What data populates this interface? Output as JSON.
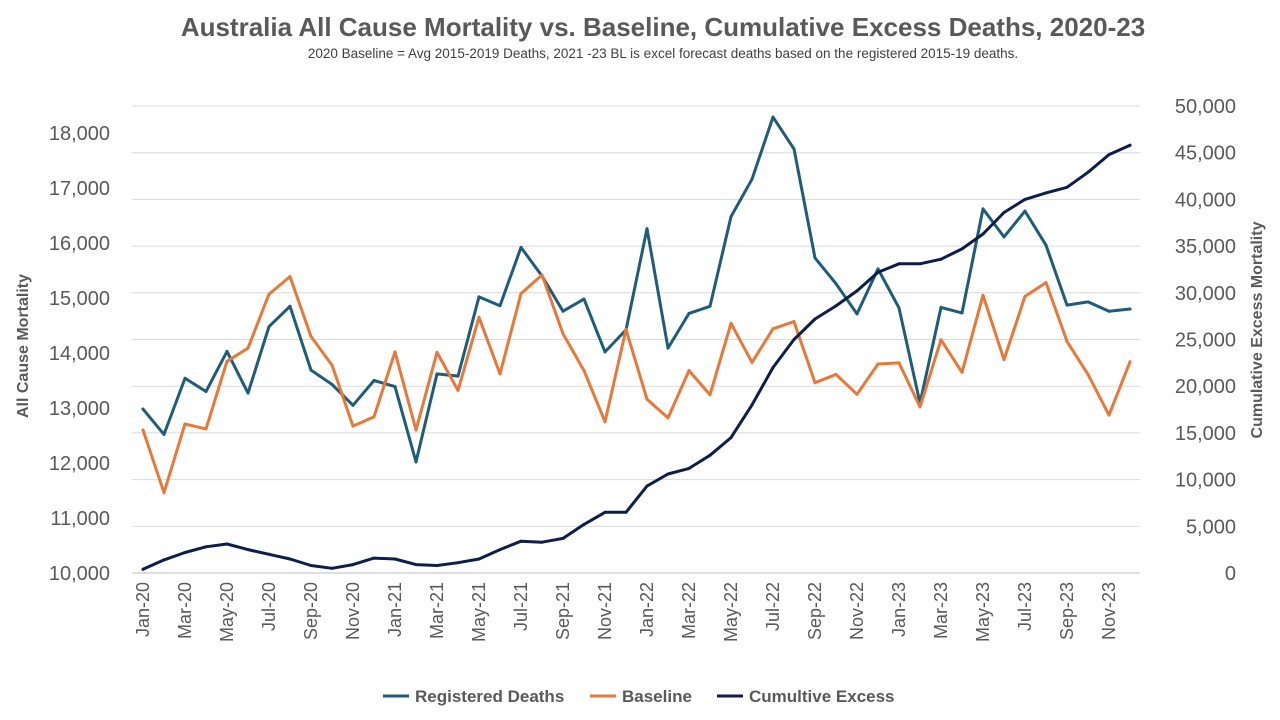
{
  "chart_data": {
    "type": "line",
    "title": "Australia All Cause Mortality vs. Baseline, Cumulative Excess Deaths, 2020-23",
    "subtitle": "2020 Baseline = Avg 2015-2019 Deaths, 2021 -23 BL is excel forecast deaths based on the registered 2015-19 deaths.",
    "ylabel_left": "All Cause Mortality",
    "ylabel_right": "Cumulative Excess Mortality",
    "xlabel": "",
    "ylim_left": [
      10000,
      18500
    ],
    "ylim_right": [
      0,
      50000
    ],
    "yticks_left": [
      "10,000",
      "11,000",
      "12,000",
      "13,000",
      "14,000",
      "15,000",
      "16,000",
      "17,000",
      "18,000"
    ],
    "yticks_right": [
      "0",
      "5,000",
      "10,000",
      "15,000",
      "20,000",
      "25,000",
      "30,000",
      "35,000",
      "40,000",
      "45,000",
      "50,000"
    ],
    "grid": true,
    "legend_position": "bottom",
    "x": [
      "Jan-20",
      "Feb-20",
      "Mar-20",
      "Apr-20",
      "May-20",
      "Jun-20",
      "Jul-20",
      "Aug-20",
      "Sep-20",
      "Oct-20",
      "Nov-20",
      "Dec-20",
      "Jan-21",
      "Feb-21",
      "Mar-21",
      "Apr-21",
      "May-21",
      "Jun-21",
      "Jul-21",
      "Aug-21",
      "Sep-21",
      "Oct-21",
      "Nov-21",
      "Dec-21",
      "Jan-22",
      "Feb-22",
      "Mar-22",
      "Apr-22",
      "May-22",
      "Jun-22",
      "Jul-22",
      "Aug-22",
      "Sep-22",
      "Oct-22",
      "Nov-22",
      "Dec-22",
      "Jan-23",
      "Feb-23",
      "Mar-23",
      "Apr-23",
      "May-23",
      "Jun-23",
      "Jul-23",
      "Aug-23",
      "Sep-23",
      "Oct-23",
      "Nov-23",
      "Dec-23"
    ],
    "x_tick_labels": [
      "Jan-20",
      "Mar-20",
      "May-20",
      "Jul-20",
      "Sep-20",
      "Nov-20",
      "Jan-21",
      "Mar-21",
      "May-21",
      "Jul-21",
      "Sep-21",
      "Nov-21",
      "Jan-22",
      "Mar-22",
      "May-22",
      "Jul-22",
      "Sep-22",
      "Nov-22",
      "Jan-23",
      "Mar-23",
      "May-23",
      "Jul-23",
      "Sep-23",
      "Nov-23"
    ],
    "series": [
      {
        "name": "Registered Deaths",
        "axis": "left",
        "color": "#1F5C78",
        "values": [
          12980,
          12520,
          13540,
          13300,
          14030,
          13270,
          14480,
          14850,
          13690,
          13430,
          13050,
          13500,
          13390,
          12020,
          13620,
          13580,
          15020,
          14860,
          15920,
          15400,
          14760,
          14980,
          14020,
          14420,
          16260,
          14090,
          14720,
          14850,
          16480,
          17160,
          18290,
          17710,
          15730,
          15260,
          14710,
          15530,
          14820,
          13090,
          14830,
          14730,
          16620,
          16110,
          16580,
          15960,
          14870,
          14930,
          14760,
          14800
        ]
      },
      {
        "name": "Baseline",
        "axis": "left",
        "color": "#E8783A",
        "values": [
          12600,
          11460,
          12710,
          12620,
          13850,
          14090,
          15070,
          15390,
          14300,
          13780,
          12670,
          12840,
          14020,
          12600,
          14010,
          13320,
          14650,
          13620,
          15080,
          15420,
          14350,
          13680,
          12750,
          14430,
          13160,
          12820,
          13680,
          13240,
          14540,
          13830,
          14440,
          14570,
          13460,
          13610,
          13250,
          13800,
          13820,
          13020,
          14240,
          13650,
          15050,
          13880,
          15030,
          15280,
          14210,
          13610,
          12870,
          13840
        ]
      },
      {
        "name": "Cumultive Excess",
        "axis": "right",
        "color": "#0D1E4A",
        "values": [
          400,
          1400,
          2200,
          2800,
          3100,
          2500,
          2000,
          1500,
          800,
          500,
          900,
          1600,
          1500,
          900,
          800,
          1100,
          1500,
          2500,
          3400,
          3300,
          3700,
          5200,
          6500,
          6500,
          9300,
          10600,
          11200,
          12600,
          14500,
          18000,
          22000,
          25000,
          27200,
          28600,
          30200,
          32200,
          33100,
          33100,
          33600,
          34700,
          36300,
          38600,
          40000,
          40700,
          41300,
          42900,
          44800,
          45800
        ]
      }
    ]
  }
}
